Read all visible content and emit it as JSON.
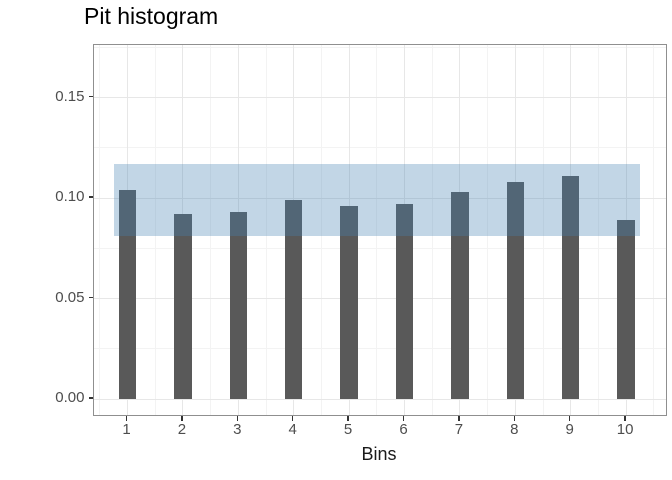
{
  "title": "Pit histogram",
  "x_axis_title": "Bins",
  "chart_data": {
    "type": "bar",
    "title": "Pit histogram",
    "xlabel": "Bins",
    "ylabel": "",
    "categories": [
      "1",
      "2",
      "3",
      "4",
      "5",
      "6",
      "7",
      "8",
      "9",
      "10"
    ],
    "values": [
      0.104,
      0.092,
      0.093,
      0.099,
      0.096,
      0.097,
      0.103,
      0.108,
      0.111,
      0.089
    ],
    "band": {
      "name": "expected-uniform-interval-band",
      "xmin": 0.75,
      "xmax": 10.25,
      "ymin": 0.081,
      "ymax": 0.117
    },
    "yticks": [
      {
        "value": 0.0,
        "label": "0.00"
      },
      {
        "value": 0.05,
        "label": "0.05"
      },
      {
        "value": 0.1,
        "label": "0.10"
      },
      {
        "value": 0.15,
        "label": "0.15"
      }
    ],
    "yticks_minor": [
      0.025,
      0.075,
      0.125,
      0.175
    ],
    "xticks_minor": [
      0.5,
      1.5,
      2.5,
      3.5,
      4.5,
      5.5,
      6.5,
      7.5,
      8.5,
      9.5,
      10.5
    ],
    "ylim": [
      0,
      0.176
    ],
    "grid": true,
    "legend": false,
    "colors": {
      "bar": "#595959",
      "band": "#4682B4",
      "band_alpha": 0.33,
      "grid_major": "#e7e7e7",
      "grid_minor": "#f3f3f3",
      "panel_border": "#8f8f8f",
      "tick": "#333333",
      "tick_label": "#4d4d4d",
      "title": "#000000",
      "axis_title": "#1a1a1a"
    }
  }
}
